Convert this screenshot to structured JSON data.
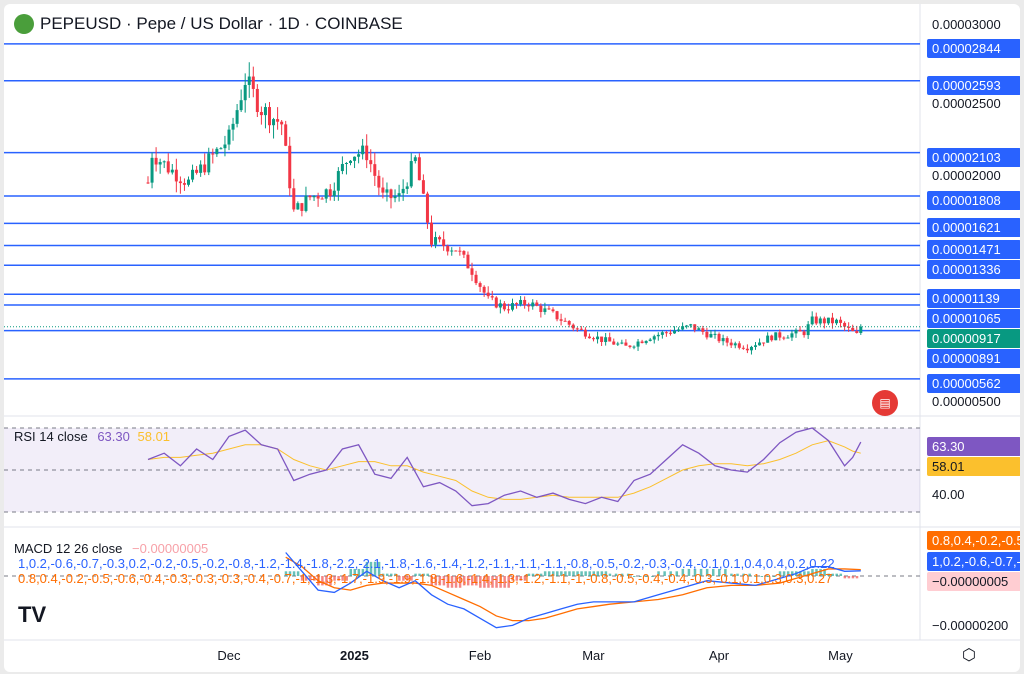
{
  "header": {
    "title": "PEPEUSD · Pepe / US Dollar · 1D · COINBASE"
  },
  "colors": {
    "up": "#089981",
    "down": "#f23645",
    "level": "#2962ff",
    "rsi": "#7e57c2",
    "rsi_ma": "#fbc02d",
    "macd": "#2962ff",
    "signal": "#ff6d00"
  },
  "chart_data": [
    {
      "type": "candlestick",
      "title": "PEPEUSD daily",
      "unit": "1e-6 USD",
      "y_ticks": [
        "0.00003000",
        "0.00002500",
        "0.00002000",
        "0.00000500"
      ],
      "y_tick_values": [
        30,
        25,
        20,
        5
      ],
      "x_ticks": [
        "Dec",
        "2025",
        "Feb",
        "Mar",
        "Apr",
        "May"
      ],
      "x_tick_days": [
        18,
        49,
        80,
        108,
        139,
        169
      ],
      "key_closes_day": [
        0,
        1,
        5,
        10,
        15,
        20,
        24,
        28,
        33,
        36,
        40,
        45,
        50,
        54,
        58,
        62,
        66,
        70,
        76,
        80,
        84,
        88,
        94,
        100,
        106,
        112,
        118,
        124,
        134,
        142,
        148,
        154,
        162,
        164,
        170,
        175,
        176
      ],
      "key_closes": [
        19,
        21,
        20,
        19,
        20.5,
        22,
        26,
        24,
        23,
        17,
        18,
        18.5,
        21,
        21,
        18,
        18,
        20.5,
        15,
        14.5,
        13,
        11,
        10.5,
        10.8,
        10,
        9,
        8.3,
        7.8,
        8.5,
        9.2,
        8.2,
        7.8,
        8.5,
        8.8,
        9.6,
        9.5,
        8.6,
        9.2
      ],
      "levels": [
        "0.00002844",
        "0.00002593",
        "0.00002103",
        "0.00001808",
        "0.00001621",
        "0.00001471",
        "0.00001336",
        "0.00001139",
        "0.00001065",
        "0.00000891",
        "0.00000562"
      ],
      "level_values": [
        28.44,
        25.93,
        21.03,
        18.08,
        16.21,
        14.71,
        13.36,
        11.39,
        10.65,
        8.91,
        5.62
      ],
      "last_price": "0.00000917",
      "last_value": 9.17
    },
    {
      "type": "line",
      "title": "RSI 14 close",
      "rsi_value": "63.30",
      "ma_value": "58.01",
      "axis_label": "40.00",
      "ylim": [
        30,
        70
      ],
      "x_days": [
        0,
        4,
        8,
        12,
        16,
        20,
        24,
        28,
        32,
        36,
        40,
        44,
        48,
        52,
        56,
        60,
        64,
        68,
        72,
        76,
        80,
        84,
        88,
        92,
        96,
        100,
        104,
        108,
        112,
        116,
        120,
        124,
        128,
        132,
        136,
        140,
        144,
        148,
        152,
        156,
        160,
        164,
        168,
        172,
        174,
        176
      ],
      "rsi": [
        55,
        58,
        52,
        60,
        55,
        66,
        69,
        62,
        60,
        45,
        48,
        50,
        60,
        62,
        48,
        46,
        56,
        42,
        44,
        40,
        33,
        34,
        38,
        40,
        37,
        39,
        36,
        34,
        37,
        35,
        45,
        48,
        55,
        62,
        58,
        52,
        50,
        49,
        55,
        63,
        68,
        70,
        64,
        52,
        56,
        63.3
      ],
      "rsi_ma": [
        55,
        56,
        56,
        57,
        58,
        60,
        62,
        62,
        60,
        55,
        52,
        50,
        52,
        54,
        54,
        52,
        52,
        49,
        47,
        45,
        40,
        37,
        36,
        36,
        37,
        38,
        37,
        37,
        37,
        37,
        39,
        42,
        46,
        50,
        52,
        53,
        53,
        52,
        53,
        55,
        58,
        62,
        64,
        61,
        59,
        58.01
      ]
    },
    {
      "type": "line",
      "title": "MACD 12 26 close",
      "hist": "−0.00000005",
      "macd": [
        1.0,
        0.2,
        -0.6,
        -0.7,
        -0.3,
        0.2,
        -0.2,
        -0.5,
        -0.2,
        -0.8,
        -1.2,
        -1.4,
        -1.8,
        -2.2,
        -2.1,
        -1.8,
        -1.6,
        -1.4,
        -1.2,
        -1.1,
        -1.1,
        -1.1,
        -0.8,
        -0.5,
        -0.2,
        -0.3,
        -0.4,
        -0.1,
        0.1,
        0.4,
        0.4,
        0.2,
        0.22
      ],
      "signal": [
        0.8,
        0.4,
        -0.2,
        -0.5,
        -0.6,
        -0.4,
        -0.3,
        -0.3,
        -0.3,
        -0.4,
        -0.7,
        -1.0,
        -1.3,
        -1.7,
        -1.9,
        -1.9,
        -1.8,
        -1.6,
        -1.4,
        -1.3,
        -1.2,
        -1.1,
        -1.0,
        -0.8,
        -0.5,
        -0.4,
        -0.4,
        -0.3,
        -0.1,
        0.1,
        0.3,
        0.3,
        0.27
      ],
      "axis_label": "−0.00000200",
      "ylim": [
        -2.3,
        1.1
      ],
      "x_days": [
        34,
        38,
        42,
        46,
        50,
        54,
        58,
        62,
        66,
        70,
        74,
        78,
        82,
        86,
        90,
        94,
        98,
        102,
        106,
        110,
        114,
        120,
        126,
        132,
        138,
        144,
        150,
        156,
        160,
        164,
        168,
        172,
        176
      ]
    }
  ]
}
